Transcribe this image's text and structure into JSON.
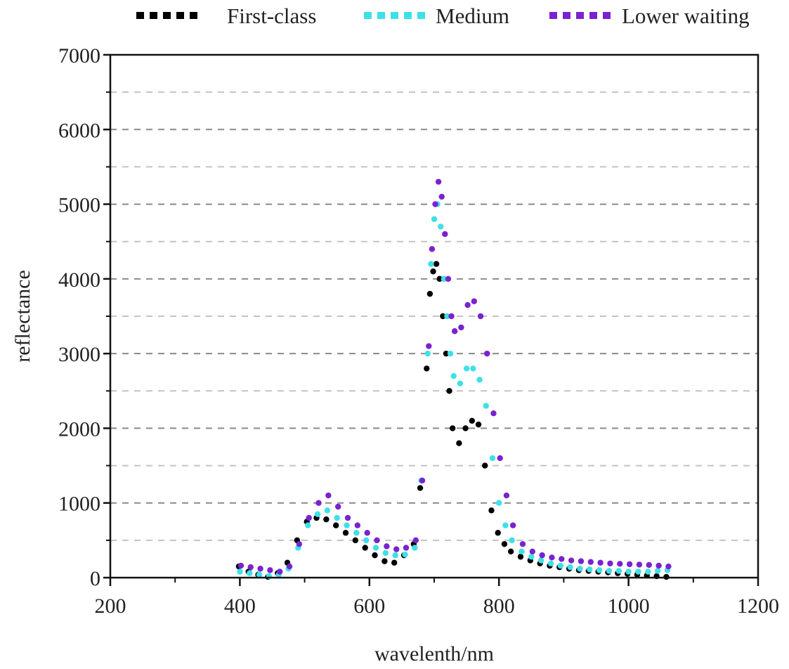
{
  "chart_data": {
    "type": "scatter",
    "title": "",
    "xlabel": "wavelenth/nm",
    "ylabel": "reflectance",
    "xlim": [
      200,
      1200
    ],
    "ylim": [
      0,
      7000
    ],
    "xticks": [
      200,
      400,
      600,
      800,
      1000,
      1200
    ],
    "yticks": [
      0,
      1000,
      2000,
      3000,
      4000,
      5000,
      6000,
      7000
    ],
    "grid": "horizontal dashed every 500",
    "legend_position": "top",
    "x": [
      400,
      415,
      430,
      445,
      460,
      475,
      490,
      505,
      520,
      535,
      550,
      565,
      580,
      595,
      610,
      625,
      640,
      655,
      670,
      680,
      690,
      695,
      700,
      705,
      710,
      715,
      720,
      725,
      730,
      740,
      750,
      760,
      770,
      780,
      790,
      800,
      810,
      820,
      835,
      850,
      865,
      880,
      895,
      910,
      925,
      940,
      955,
      970,
      985,
      1000,
      1015,
      1030,
      1045,
      1060
    ],
    "series": [
      {
        "name": "First-class",
        "color": "#000000",
        "values": [
          150,
          80,
          40,
          10,
          60,
          200,
          500,
          750,
          800,
          780,
          700,
          600,
          500,
          400,
          300,
          220,
          200,
          300,
          450,
          1200,
          2800,
          3800,
          4100,
          4200,
          4000,
          3500,
          3000,
          2500,
          2000,
          1800,
          2000,
          2100,
          2050,
          1500,
          900,
          600,
          450,
          350,
          280,
          230,
          190,
          160,
          140,
          120,
          100,
          90,
          80,
          70,
          60,
          50,
          40,
          30,
          20,
          10
        ]
      },
      {
        "name": "Medium",
        "color": "#3ee0e8",
        "values": [
          80,
          60,
          40,
          20,
          40,
          120,
          400,
          700,
          850,
          900,
          800,
          700,
          600,
          500,
          400,
          330,
          300,
          310,
          400,
          1300,
          3000,
          4200,
          4800,
          5000,
          4700,
          4000,
          3500,
          3000,
          2700,
          2600,
          2800,
          2800,
          2650,
          2300,
          1600,
          1000,
          700,
          500,
          350,
          280,
          230,
          190,
          160,
          140,
          120,
          110,
          100,
          90,
          90,
          80,
          80,
          80,
          90,
          100
        ]
      },
      {
        "name": "Lower waiting",
        "color": "#7a22d0",
        "values": [
          160,
          140,
          120,
          100,
          80,
          150,
          450,
          800,
          1000,
          1100,
          950,
          800,
          700,
          600,
          500,
          420,
          380,
          400,
          500,
          1300,
          3100,
          4400,
          5000,
          5300,
          5100,
          4600,
          4000,
          3500,
          3300,
          3350,
          3650,
          3700,
          3500,
          3000,
          2200,
          1600,
          1100,
          700,
          450,
          350,
          300,
          270,
          250,
          230,
          220,
          210,
          200,
          190,
          185,
          180,
          175,
          170,
          160,
          150
        ]
      }
    ]
  },
  "legend": {
    "items": [
      {
        "label": "First-class",
        "color": "#000000"
      },
      {
        "label": "Medium",
        "color": "#3ee0e8"
      },
      {
        "label": "Lower waiting",
        "color": "#7a22d0"
      }
    ]
  },
  "axes": {
    "x_title": "wavelenth/nm",
    "y_title": "reflectance",
    "x_tick_labels": [
      "200",
      "400",
      "600",
      "800",
      "1000",
      "1200"
    ],
    "y_tick_labels": [
      "0",
      "1000",
      "2000",
      "3000",
      "4000",
      "5000",
      "6000",
      "7000"
    ]
  }
}
